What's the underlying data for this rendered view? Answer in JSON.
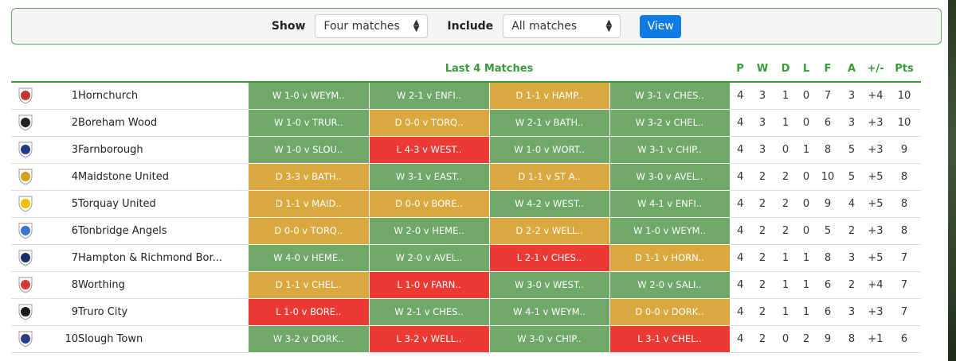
{
  "filters": {
    "show_label": "Show",
    "show_value": "Four matches",
    "include_label": "Include",
    "include_value": "All matches",
    "view_label": "View"
  },
  "table": {
    "header_title": "Last 4 Matches",
    "stat_headers": [
      "P",
      "W",
      "D",
      "L",
      "F",
      "A",
      "+/-",
      "Pts"
    ],
    "rows": [
      {
        "pos": "1",
        "team": "Hornchurch",
        "crest_color": "#c0392b",
        "results": [
          {
            "r": "W",
            "text": "W 1-0 v WEYM.."
          },
          {
            "r": "W",
            "text": "W 2-1 v ENFI.."
          },
          {
            "r": "D",
            "text": "D 1-1 v HAMP.."
          },
          {
            "r": "W",
            "text": "W 3-1 v CHES.."
          }
        ],
        "stats": [
          "4",
          "3",
          "1",
          "0",
          "7",
          "3",
          "+4",
          "10"
        ]
      },
      {
        "pos": "2",
        "team": "Boreham Wood",
        "crest_color": "#222222",
        "results": [
          {
            "r": "W",
            "text": "W 1-0 v TRUR.."
          },
          {
            "r": "D",
            "text": "D 0-0 v TORQ.."
          },
          {
            "r": "W",
            "text": "W 2-1 v BATH.."
          },
          {
            "r": "W",
            "text": "W 3-2 v CHEL.."
          }
        ],
        "stats": [
          "4",
          "3",
          "1",
          "0",
          "6",
          "3",
          "+3",
          "10"
        ]
      },
      {
        "pos": "3",
        "team": "Farnborough",
        "crest_color": "#1f3a80",
        "results": [
          {
            "r": "W",
            "text": "W 1-0 v SLOU.."
          },
          {
            "r": "L",
            "text": "L 4-3 v WEST.."
          },
          {
            "r": "W",
            "text": "W 1-0 v WORT.."
          },
          {
            "r": "W",
            "text": "W 3-1 v CHIP.."
          }
        ],
        "stats": [
          "4",
          "3",
          "0",
          "1",
          "8",
          "5",
          "+3",
          "9"
        ]
      },
      {
        "pos": "4",
        "team": "Maidstone United",
        "crest_color": "#d4a017",
        "results": [
          {
            "r": "D",
            "text": "D 3-3 v BATH.."
          },
          {
            "r": "W",
            "text": "W 3-1 v EAST.."
          },
          {
            "r": "D",
            "text": "D 1-1 v ST A.."
          },
          {
            "r": "W",
            "text": "W 3-0 v AVEL.."
          }
        ],
        "stats": [
          "4",
          "2",
          "2",
          "0",
          "10",
          "5",
          "+5",
          "8"
        ]
      },
      {
        "pos": "5",
        "team": "Torquay United",
        "crest_color": "#e8c400",
        "results": [
          {
            "r": "D",
            "text": "D 1-1 v MAID.."
          },
          {
            "r": "D",
            "text": "D 0-0 v BORE.."
          },
          {
            "r": "W",
            "text": "W 4-2 v WEST.."
          },
          {
            "r": "W",
            "text": "W 4-1 v ENFI.."
          }
        ],
        "stats": [
          "4",
          "2",
          "2",
          "0",
          "9",
          "4",
          "+5",
          "8"
        ]
      },
      {
        "pos": "6",
        "team": "Tonbridge Angels",
        "crest_color": "#3c74c9",
        "results": [
          {
            "r": "D",
            "text": "D 0-0 v TORQ.."
          },
          {
            "r": "W",
            "text": "W 2-0 v HEME.."
          },
          {
            "r": "D",
            "text": "D 2-2 v WELL.."
          },
          {
            "r": "W",
            "text": "W 1-0 v WEYM.."
          }
        ],
        "stats": [
          "4",
          "2",
          "2",
          "0",
          "5",
          "2",
          "+3",
          "8"
        ]
      },
      {
        "pos": "7",
        "team": "Hampton & Richmond Bor...",
        "crest_color": "#1a2e6e",
        "results": [
          {
            "r": "W",
            "text": "W 4-0 v HEME.."
          },
          {
            "r": "W",
            "text": "W 2-0 v AVEL.."
          },
          {
            "r": "L",
            "text": "L 2-1 v CHES.."
          },
          {
            "r": "D",
            "text": "D 1-1 v HORN.."
          }
        ],
        "stats": [
          "4",
          "2",
          "1",
          "1",
          "8",
          "3",
          "+5",
          "7"
        ]
      },
      {
        "pos": "8",
        "team": "Worthing",
        "crest_color": "#d23a3a",
        "results": [
          {
            "r": "D",
            "text": "D 1-1 v CHEL.."
          },
          {
            "r": "L",
            "text": "L 1-0 v FARN.."
          },
          {
            "r": "W",
            "text": "W 3-0 v WEST.."
          },
          {
            "r": "W",
            "text": "W 2-0 v SALI.."
          }
        ],
        "stats": [
          "4",
          "2",
          "1",
          "1",
          "6",
          "2",
          "+4",
          "7"
        ]
      },
      {
        "pos": "9",
        "team": "Truro City",
        "crest_color": "#1a1a1a",
        "results": [
          {
            "r": "L",
            "text": "L 1-0 v BORE.."
          },
          {
            "r": "W",
            "text": "W 2-1 v CHES.."
          },
          {
            "r": "W",
            "text": "W 4-1 v WEYM.."
          },
          {
            "r": "D",
            "text": "D 0-0 v DORK.."
          }
        ],
        "stats": [
          "4",
          "2",
          "1",
          "1",
          "6",
          "3",
          "+3",
          "7"
        ]
      },
      {
        "pos": "10",
        "team": "Slough Town",
        "crest_color": "#2c3e80",
        "results": [
          {
            "r": "W",
            "text": "W 3-2 v DORK.."
          },
          {
            "r": "L",
            "text": "L 3-2 v WELL.."
          },
          {
            "r": "W",
            "text": "W 3-0 v CHIP.."
          },
          {
            "r": "L",
            "text": "L 3-1 v CHEL.."
          }
        ],
        "stats": [
          "4",
          "2",
          "0",
          "2",
          "9",
          "8",
          "+1",
          "6"
        ]
      }
    ]
  }
}
